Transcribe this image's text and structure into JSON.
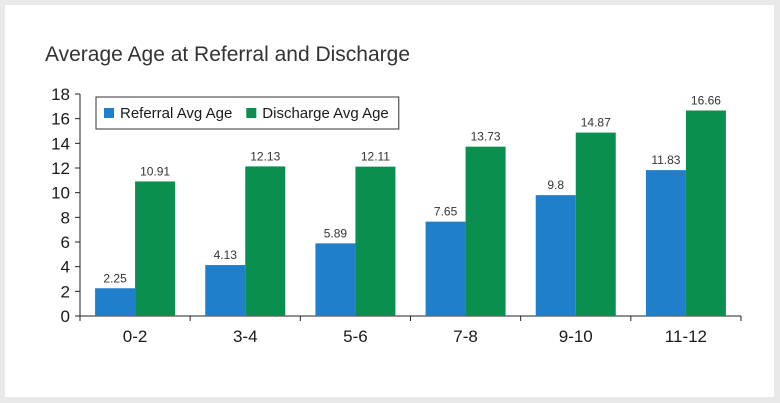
{
  "chart_data": {
    "type": "bar",
    "title": "Average Age at Referral and Discharge",
    "xlabel": "",
    "ylabel": "",
    "categories": [
      "0-2",
      "3-4",
      "5-6",
      "7-8",
      "9-10",
      "11-12"
    ],
    "series": [
      {
        "name": "Referral Avg Age",
        "values": [
          2.25,
          4.13,
          5.89,
          7.65,
          9.8,
          11.83
        ],
        "labels": [
          "2.25",
          "4.13",
          "5.89",
          "7.65",
          "9.8",
          "11.83"
        ],
        "color": "#1f7fcb"
      },
      {
        "name": "Discharge Avg Age",
        "values": [
          10.91,
          12.13,
          12.11,
          13.73,
          14.87,
          16.66
        ],
        "labels": [
          "10.91",
          "12.13",
          "12.11",
          "13.73",
          "14.87",
          "16.66"
        ],
        "color": "#0a8f4f"
      }
    ],
    "ylim": [
      0,
      18
    ],
    "yticks": [
      0,
      2,
      4,
      6,
      8,
      10,
      12,
      14,
      16,
      18
    ],
    "grid": false,
    "legend_position": "top-left"
  }
}
